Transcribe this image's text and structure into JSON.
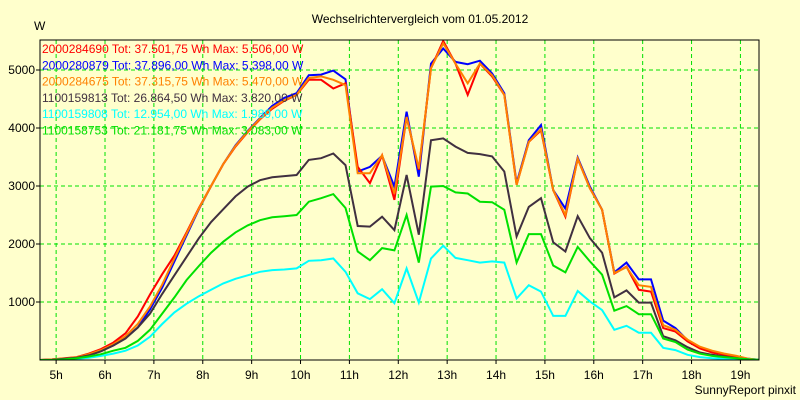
{
  "chart_data": {
    "type": "line",
    "title": "Wechselrichtervergleich vom 01.05.2012",
    "ylabel": "W",
    "xlabel": "",
    "footer": "SunnyReport pinxit",
    "xlim": [
      4.67,
      19.38
    ],
    "ylim": [
      0,
      5517
    ],
    "grid": true,
    "legend_placement": "top-left",
    "x_ticks": [
      5,
      6,
      7,
      8,
      9,
      10,
      11,
      12,
      13,
      14,
      15,
      16,
      17,
      18,
      19
    ],
    "x_tick_labels": [
      "5h",
      "6h",
      "7h",
      "8h",
      "9h",
      "10h",
      "11h",
      "12h",
      "13h",
      "14h",
      "15h",
      "16h",
      "17h",
      "18h",
      "19h"
    ],
    "y_ticks": [
      1000,
      2000,
      3000,
      4000,
      5000
    ],
    "y_tick_labels": [
      "1000",
      "2000",
      "3000",
      "4000",
      "5000"
    ],
    "x_start": 4.67,
    "x_step": 0.25,
    "series": [
      {
        "name": "2000280879",
        "legend": "2000280879 Tot: 37.896,00 Wh Max: 5.398,00 W",
        "color": "#0000FF",
        "legend_order": 1,
        "values": [
          0,
          5,
          20,
          40,
          90,
          160,
          250,
          380,
          560,
          870,
          1250,
          1700,
          2150,
          2600,
          3000,
          3380,
          3700,
          3950,
          4170,
          4380,
          4520,
          4600,
          4910,
          4920,
          4990,
          4840,
          3250,
          3330,
          3520,
          2990,
          4280,
          3160,
          5110,
          5370,
          5140,
          5100,
          5160,
          4940,
          4600,
          3050,
          3790,
          4050,
          2930,
          2610,
          3490,
          2990,
          2590,
          1510,
          1680,
          1390,
          1390,
          680,
          550,
          340,
          220,
          140,
          90,
          60,
          20,
          0
        ]
      },
      {
        "name": "2000284690",
        "legend": "2000284690 Tot: 37.501,75 Wh Max: 5.506,00 W",
        "color": "#FF0000",
        "legend_order": 0,
        "values": [
          0,
          10,
          30,
          50,
          110,
          190,
          300,
          460,
          750,
          1130,
          1480,
          1800,
          2200,
          2620,
          3000,
          3380,
          3680,
          3930,
          4150,
          4330,
          4470,
          4570,
          4830,
          4830,
          4680,
          4770,
          3330,
          3050,
          3530,
          2760,
          4190,
          3280,
          5030,
          5500,
          5110,
          4570,
          5110,
          4890,
          4570,
          3020,
          3760,
          3960,
          2930,
          2470,
          3470,
          2960,
          2590,
          1490,
          1610,
          1210,
          1180,
          550,
          490,
          320,
          200,
          130,
          90,
          60,
          10,
          0
        ]
      },
      {
        "name": "2000284675",
        "legend": "2000284675 Tot: 37.315,75 Wh Max: 5.470,00 W",
        "color": "#FF8000",
        "legend_order": 2,
        "values": [
          0,
          10,
          25,
          45,
          100,
          170,
          270,
          410,
          620,
          920,
          1300,
          1750,
          2180,
          2610,
          3000,
          3380,
          3690,
          3940,
          4160,
          4350,
          4480,
          4570,
          4860,
          4890,
          4830,
          4740,
          3220,
          3220,
          3530,
          2870,
          4190,
          3300,
          5030,
          5460,
          5110,
          4770,
          5110,
          4910,
          4570,
          3020,
          3760,
          3980,
          2930,
          2500,
          3470,
          2960,
          2590,
          1500,
          1600,
          1290,
          1260,
          600,
          520,
          350,
          230,
          160,
          110,
          70,
          20,
          0
        ]
      },
      {
        "name": "1100159813",
        "legend": "1100159813 Tot: 26.864,50 Wh Max: 3.820,00 W",
        "color": "#403040",
        "legend_order": 3,
        "values": [
          0,
          5,
          20,
          40,
          80,
          150,
          250,
          370,
          560,
          800,
          1140,
          1460,
          1780,
          2100,
          2380,
          2600,
          2820,
          2990,
          3100,
          3150,
          3170,
          3190,
          3450,
          3480,
          3560,
          3360,
          2310,
          2300,
          2470,
          2240,
          3190,
          2160,
          3790,
          3820,
          3680,
          3570,
          3550,
          3510,
          3250,
          2130,
          2640,
          2790,
          2030,
          1870,
          2480,
          2100,
          1850,
          1080,
          1200,
          990,
          990,
          410,
          340,
          220,
          130,
          90,
          60,
          30,
          10,
          0
        ]
      },
      {
        "name": "1100159808",
        "legend": "1100159808 Tot: 12.954,00 Wh Max: 1.989,00 W",
        "color": "#00FFFF",
        "legend_order": 4,
        "values": [
          0,
          0,
          5,
          20,
          40,
          70,
          110,
          160,
          250,
          400,
          620,
          820,
          970,
          1100,
          1210,
          1320,
          1400,
          1460,
          1520,
          1550,
          1560,
          1580,
          1710,
          1720,
          1750,
          1520,
          1150,
          1050,
          1220,
          980,
          1580,
          990,
          1750,
          1970,
          1760,
          1720,
          1680,
          1700,
          1680,
          1060,
          1290,
          1180,
          760,
          760,
          1190,
          1010,
          860,
          520,
          590,
          470,
          470,
          210,
          170,
          90,
          50,
          30,
          20,
          10,
          10,
          0
        ]
      },
      {
        "name": "1100158753",
        "legend": "1100158753 Tot: 21.181,75 Wh Max: 3.083,00 W",
        "color": "#00E000",
        "legend_order": 5,
        "values": [
          0,
          0,
          10,
          30,
          60,
          100,
          160,
          210,
          330,
          520,
          800,
          1080,
          1380,
          1620,
          1850,
          2040,
          2200,
          2320,
          2410,
          2460,
          2480,
          2500,
          2730,
          2790,
          2860,
          2620,
          1870,
          1720,
          1930,
          1890,
          2500,
          1680,
          2990,
          3000,
          2890,
          2870,
          2730,
          2720,
          2590,
          1680,
          2170,
          2170,
          1630,
          1510,
          1950,
          1700,
          1470,
          850,
          930,
          790,
          790,
          370,
          310,
          180,
          110,
          70,
          50,
          30,
          10,
          0
        ]
      }
    ]
  },
  "colors": {
    "background": "#FFFFCC",
    "grid": "#00E000",
    "axis": "#000000"
  }
}
